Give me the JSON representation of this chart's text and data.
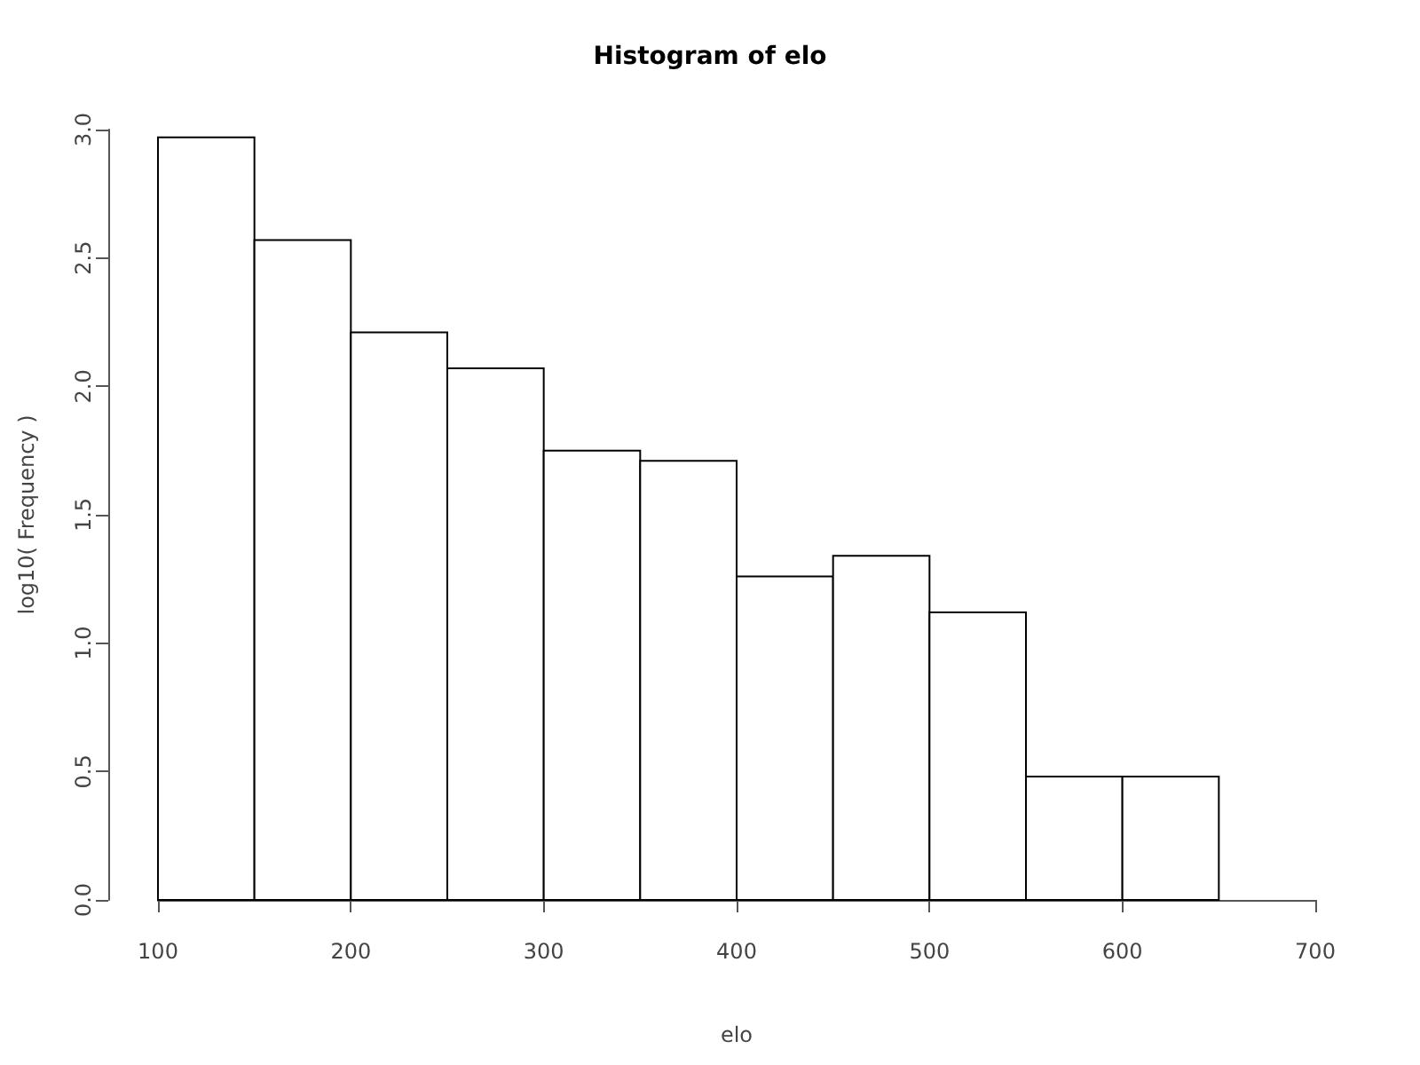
{
  "chart_data": {
    "type": "histogram",
    "title": "Histogram of elo",
    "xlabel": "elo",
    "ylabel": "log10( Frequency )",
    "bins": [
      100,
      150,
      200,
      250,
      300,
      350,
      400,
      450,
      500,
      550,
      600,
      650
    ],
    "values": [
      2.97,
      2.57,
      2.21,
      2.07,
      1.75,
      1.71,
      1.26,
      1.34,
      1.12,
      0.48,
      0.48
    ],
    "color": "#ffffff",
    "xlim": [
      100,
      700
    ],
    "xticks": [
      100,
      200,
      300,
      400,
      500,
      600,
      700
    ],
    "ylim": [
      0,
      3
    ],
    "yticks": [
      {
        "value": 0,
        "label": "0.0"
      },
      {
        "value": 0.5,
        "label": "0.5"
      },
      {
        "value": 1,
        "label": "1.0"
      },
      {
        "value": 1.5,
        "label": "1.5"
      },
      {
        "value": 2,
        "label": "2.0"
      },
      {
        "value": 2.5,
        "label": "2.5"
      },
      {
        "value": 3,
        "label": "3.0"
      }
    ],
    "grid": false
  }
}
